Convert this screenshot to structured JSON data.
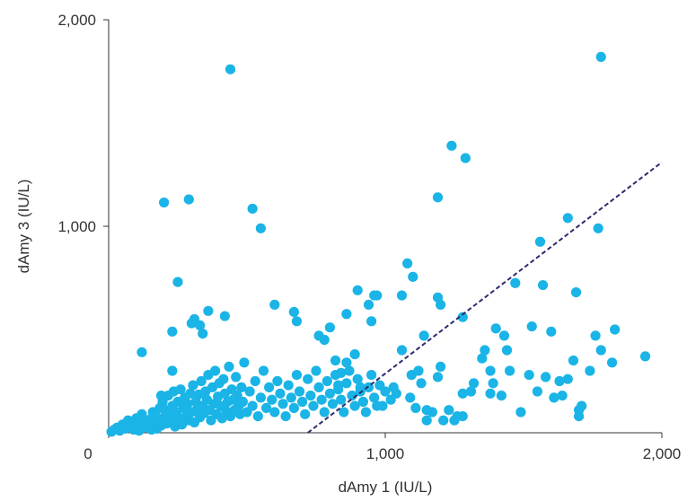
{
  "chart_data": {
    "type": "scatter",
    "xlabel": "dAmy 1 (IU/L)",
    "ylabel": "dAmy 3 (IU/L)",
    "xlim": [
      0,
      2000
    ],
    "ylim": [
      0,
      2000
    ],
    "x_ticks": [
      {
        "value": 1000,
        "label": "1,000"
      },
      {
        "value": 2000,
        "label": "2,000"
      }
    ],
    "y_ticks": [
      {
        "value": 1000,
        "label": "1,000"
      },
      {
        "value": 2000,
        "label": "2,000"
      }
    ],
    "origin_label": "0",
    "grid": false,
    "colors": {
      "points": "#1ab4e6",
      "reference_line": "#2e2a6e",
      "axis": "#333333"
    },
    "reference_line": {
      "style": "dashed",
      "from": [
        720,
        0
      ],
      "to": [
        2000,
        1310
      ]
    },
    "series": [
      {
        "points": [
          [
            10,
            5
          ],
          [
            20,
            15
          ],
          [
            30,
            25
          ],
          [
            40,
            10
          ],
          [
            50,
            40
          ],
          [
            60,
            20
          ],
          [
            70,
            60
          ],
          [
            80,
            35
          ],
          [
            90,
            15
          ],
          [
            95,
            50
          ],
          [
            100,
            70
          ],
          [
            105,
            30
          ],
          [
            110,
            10
          ],
          [
            120,
            90
          ],
          [
            130,
            50
          ],
          [
            140,
            25
          ],
          [
            150,
            65
          ],
          [
            155,
            15
          ],
          [
            160,
            100
          ],
          [
            165,
            40
          ],
          [
            170,
            80
          ],
          [
            175,
            20
          ],
          [
            180,
            55
          ],
          [
            185,
            120
          ],
          [
            190,
            35
          ],
          [
            195,
            150
          ],
          [
            200,
            75
          ],
          [
            205,
            110
          ],
          [
            210,
            45
          ],
          [
            215,
            180
          ],
          [
            220,
            90
          ],
          [
            225,
            60
          ],
          [
            230,
            130
          ],
          [
            235,
            200
          ],
          [
            240,
            30
          ],
          [
            245,
            100
          ],
          [
            250,
            150
          ],
          [
            255,
            70
          ],
          [
            260,
            210
          ],
          [
            265,
            40
          ],
          [
            270,
            120
          ],
          [
            275,
            170
          ],
          [
            280,
            80
          ],
          [
            285,
            140
          ],
          [
            290,
            60
          ],
          [
            295,
            190
          ],
          [
            300,
            100
          ],
          [
            305,
            230
          ],
          [
            310,
            50
          ],
          [
            315,
            150
          ],
          [
            320,
            115
          ],
          [
            325,
            185
          ],
          [
            330,
            75
          ],
          [
            335,
            250
          ],
          [
            340,
            130
          ],
          [
            345,
            95
          ],
          [
            350,
            200
          ],
          [
            355,
            160
          ],
          [
            360,
            280
          ],
          [
            365,
            110
          ],
          [
            370,
            60
          ],
          [
            375,
            220
          ],
          [
            380,
            140
          ],
          [
            385,
            300
          ],
          [
            390,
            90
          ],
          [
            395,
            175
          ],
          [
            400,
            240
          ],
          [
            405,
            130
          ],
          [
            410,
            70
          ],
          [
            415,
            260
          ],
          [
            420,
            190
          ],
          [
            425,
            105
          ],
          [
            430,
            150
          ],
          [
            435,
            320
          ],
          [
            440,
            80
          ],
          [
            445,
            210
          ],
          [
            450,
            160
          ],
          [
            455,
            110
          ],
          [
            460,
            270
          ],
          [
            465,
            180
          ],
          [
            470,
            130
          ],
          [
            475,
            90
          ],
          [
            480,
            220
          ],
          [
            485,
            150
          ],
          [
            490,
            340
          ],
          [
            500,
            100
          ],
          [
            510,
            200
          ],
          [
            520,
            130
          ],
          [
            530,
            250
          ],
          [
            540,
            80
          ],
          [
            550,
            170
          ],
          [
            560,
            300
          ],
          [
            570,
            120
          ],
          [
            580,
            220
          ],
          [
            590,
            160
          ],
          [
            600,
            100
          ],
          [
            610,
            250
          ],
          [
            620,
            190
          ],
          [
            630,
            140
          ],
          [
            640,
            80
          ],
          [
            650,
            230
          ],
          [
            660,
            170
          ],
          [
            670,
            120
          ],
          [
            680,
            280
          ],
          [
            690,
            200
          ],
          [
            700,
            150
          ],
          [
            710,
            90
          ],
          [
            720,
            260
          ],
          [
            730,
            180
          ],
          [
            740,
            130
          ],
          [
            750,
            300
          ],
          [
            760,
            220
          ],
          [
            770,
            160
          ],
          [
            780,
            100
          ],
          [
            790,
            250
          ],
          [
            800,
            190
          ],
          [
            810,
            140
          ],
          [
            820,
            280
          ],
          [
            830,
            210
          ],
          [
            840,
            160
          ],
          [
            850,
            100
          ],
          [
            860,
            240
          ],
          [
            870,
            300
          ],
          [
            880,
            180
          ],
          [
            890,
            130
          ],
          [
            900,
            260
          ],
          [
            910,
            200
          ],
          [
            920,
            150
          ],
          [
            930,
            100
          ],
          [
            940,
            220
          ],
          [
            950,
            280
          ],
          [
            960,
            170
          ],
          [
            970,
            130
          ],
          [
            980,
            230
          ],
          [
            300,
            530
          ],
          [
            310,
            550
          ],
          [
            330,
            520
          ],
          [
            340,
            480
          ],
          [
            360,
            590
          ],
          [
            420,
            565
          ],
          [
            600,
            620
          ],
          [
            670,
            585
          ],
          [
            680,
            540
          ],
          [
            760,
            470
          ],
          [
            780,
            450
          ],
          [
            800,
            510
          ],
          [
            860,
            575
          ],
          [
            900,
            690
          ],
          [
            940,
            620
          ],
          [
            960,
            665
          ],
          [
            970,
            665
          ],
          [
            1060,
            665
          ],
          [
            1080,
            820
          ],
          [
            1100,
            755
          ],
          [
            1140,
            470
          ],
          [
            1190,
            655
          ],
          [
            1200,
            620
          ],
          [
            1280,
            560
          ],
          [
            1470,
            725
          ],
          [
            1560,
            925
          ],
          [
            1570,
            715
          ],
          [
            1660,
            1040
          ],
          [
            1690,
            680
          ],
          [
            1770,
            990
          ],
          [
            1830,
            500
          ],
          [
            200,
            1115
          ],
          [
            290,
            1130
          ],
          [
            520,
            1085
          ],
          [
            550,
            990
          ],
          [
            440,
            1760
          ],
          [
            1190,
            1140
          ],
          [
            1240,
            1390
          ],
          [
            1290,
            1330
          ],
          [
            1780,
            1820
          ],
          [
            230,
            490
          ],
          [
            250,
            730
          ],
          [
            230,
            300
          ],
          [
            190,
            180
          ],
          [
            120,
            390
          ],
          [
            1400,
            505
          ],
          [
            1430,
            470
          ],
          [
            1440,
            400
          ],
          [
            1530,
            515
          ],
          [
            1580,
            270
          ],
          [
            1600,
            490
          ],
          [
            1630,
            250
          ],
          [
            1680,
            350
          ],
          [
            1700,
            110
          ],
          [
            1710,
            130
          ],
          [
            1760,
            470
          ],
          [
            1780,
            400
          ],
          [
            1820,
            340
          ],
          [
            1940,
            370
          ],
          [
            1360,
            400
          ],
          [
            1380,
            300
          ],
          [
            1390,
            240
          ],
          [
            1420,
            180
          ],
          [
            1450,
            300
          ],
          [
            1490,
            100
          ],
          [
            1520,
            280
          ],
          [
            1550,
            200
          ],
          [
            1610,
            170
          ],
          [
            1640,
            180
          ],
          [
            1660,
            260
          ],
          [
            1700,
            80
          ],
          [
            1740,
            300
          ],
          [
            1310,
            200
          ],
          [
            1280,
            190
          ],
          [
            1260,
            80
          ],
          [
            1230,
            110
          ],
          [
            1210,
            60
          ],
          [
            1190,
            270
          ],
          [
            1170,
            100
          ],
          [
            1150,
            110
          ],
          [
            1130,
            240
          ],
          [
            1110,
            120
          ],
          [
            1090,
            170
          ],
          [
            1060,
            400
          ],
          [
            1040,
            190
          ],
          [
            1030,
            220
          ],
          [
            1020,
            160
          ],
          [
            1000,
            200
          ],
          [
            990,
            130
          ],
          [
            1200,
            320
          ],
          [
            1250,
            60
          ],
          [
            1320,
            240
          ],
          [
            1350,
            360
          ],
          [
            1380,
            190
          ],
          [
            1120,
            300
          ],
          [
            1150,
            60
          ],
          [
            1095,
            280
          ],
          [
            1280,
            80
          ],
          [
            890,
            380
          ],
          [
            910,
            220
          ],
          [
            950,
            540
          ],
          [
            860,
            340
          ],
          [
            840,
            290
          ],
          [
            830,
            230
          ],
          [
            820,
            350
          ]
        ]
      }
    ]
  }
}
